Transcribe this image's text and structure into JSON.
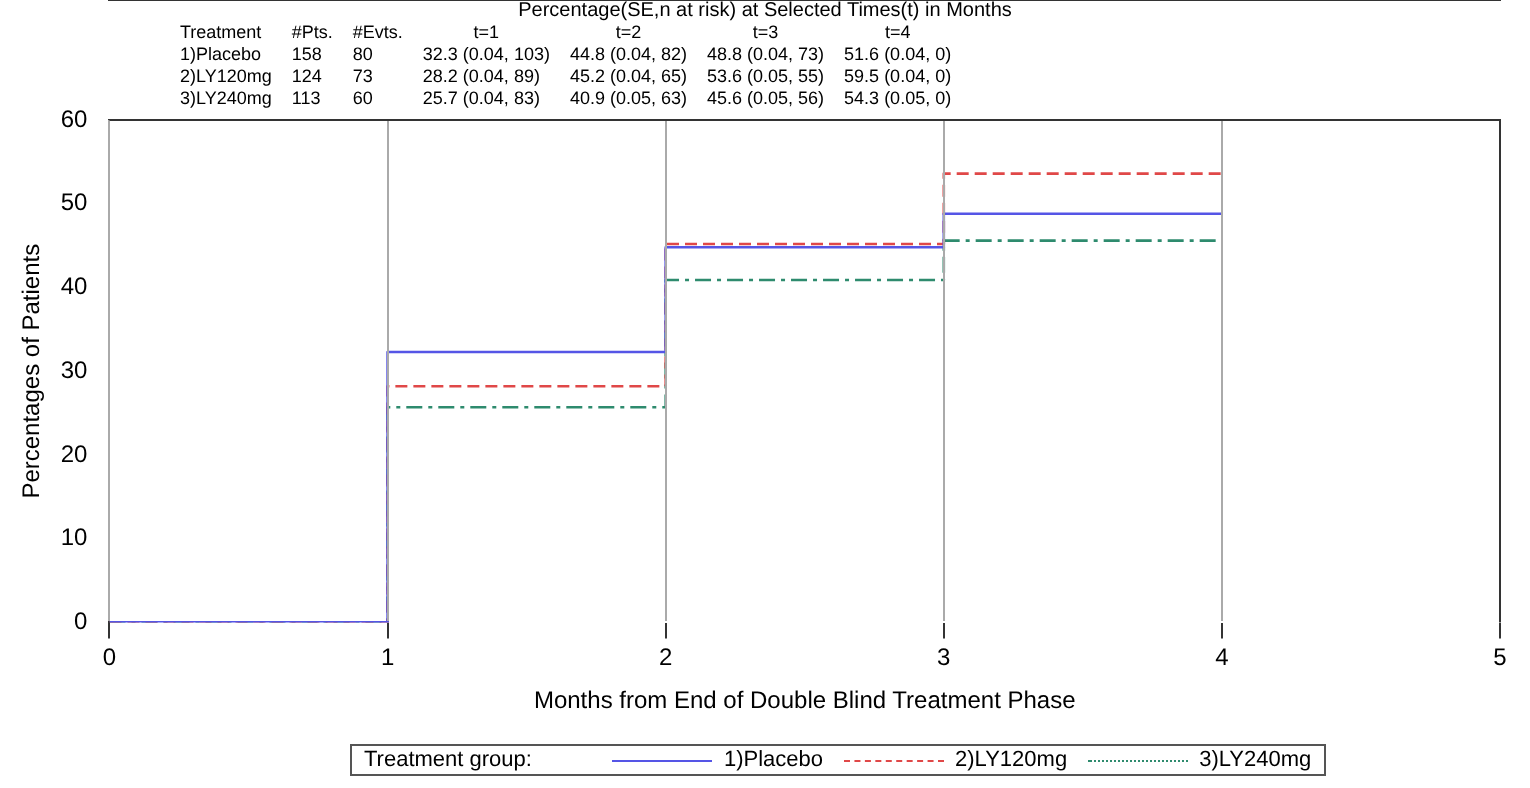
{
  "chart_data": {
    "type": "step",
    "title": "Percentage(SE,n at risk) at Selected Times(t) in Months",
    "annotations": [
      "Treatment",
      "#Pts.",
      "#Evts.",
      "t=1",
      "t=2",
      "t=3",
      "t=4",
      "1)Placebo",
      "158",
      "80",
      "32.3 (0.04, 103)",
      "44.8 (0.04, 82)",
      "48.8 (0.04, 73)",
      "51.6 (0.04, 0)",
      "2)LY120mg",
      "124",
      "73",
      "28.2 (0.04, 89)",
      "45.2 (0.04, 65)",
      "53.6 (0.05, 55)",
      "59.5 (0.04, 0)",
      "3)LY240mg",
      "113",
      "60",
      "25.7 (0.04, 83)",
      "40.9 (0.05, 63)",
      "45.6 (0.05, 56)",
      "54.3 (0.05, 0)"
    ],
    "xlabel": "Months from End of Double Blind Treatment Phase",
    "ylabel": "Percentages of Patients",
    "legend_title": "Treatment group:",
    "legend": "bottom",
    "grid": "x",
    "x": [
      0,
      1,
      2,
      3,
      4
    ],
    "series": [
      {
        "name": "1)Placebo",
        "color": "#5555e6",
        "line_style": "solid",
        "values": [
          0,
          32.3,
          44.8,
          48.8,
          48.8
        ]
      },
      {
        "name": "2)LY120mg",
        "color": "#e04848",
        "line_style": "dashed",
        "values": [
          0,
          28.2,
          45.2,
          53.6,
          53.6
        ]
      },
      {
        "name": "3)LY240mg",
        "color": "#2e8b6e",
        "line_style": "dotted",
        "values": [
          0,
          25.7,
          40.9,
          45.6,
          45.6
        ]
      }
    ],
    "xlim": [
      0,
      5
    ],
    "xticks": [
      0,
      1,
      2,
      3,
      4,
      5
    ],
    "ylim": [
      0,
      60
    ],
    "yticks": [
      0,
      10,
      20,
      30,
      40,
      50,
      60
    ]
  }
}
